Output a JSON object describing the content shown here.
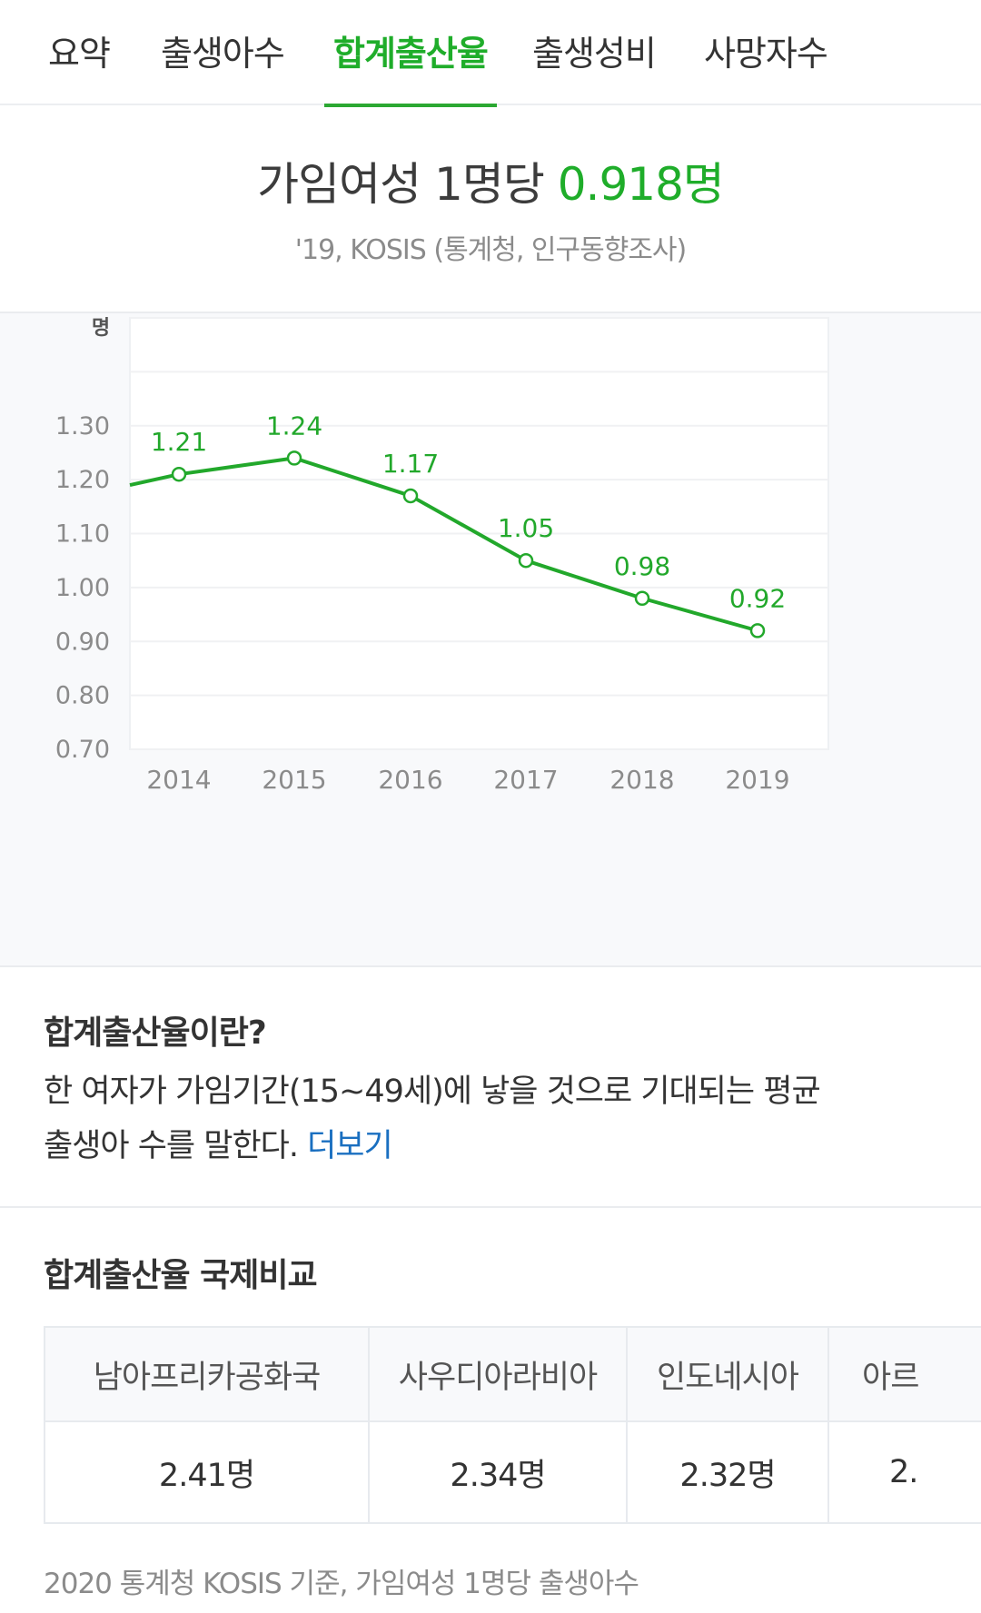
{
  "tabs": [
    {
      "label": "요약",
      "active": false
    },
    {
      "label": "출생아수",
      "active": false
    },
    {
      "label": "합계출산율",
      "active": true
    },
    {
      "label": "출생성비",
      "active": false
    },
    {
      "label": "사망자수",
      "active": false
    }
  ],
  "headline": {
    "prefix": "가임여성 1명당 ",
    "value": "0.918명",
    "source": "'19, KOSIS (통계청, 인구동향조사)"
  },
  "colors": {
    "accent": "#1fad2a",
    "line": "#22a82b",
    "link": "#1a6fc0",
    "chart_bg": "#f8f9fb"
  },
  "chart_data": {
    "type": "line",
    "title": "",
    "ylabel": "명",
    "xlabel": "",
    "categories": [
      "2014",
      "2015",
      "2016",
      "2017",
      "2018",
      "2019"
    ],
    "values": [
      1.21,
      1.24,
      1.17,
      1.05,
      0.98,
      0.92
    ],
    "data_labels": [
      "1.21",
      "1.24",
      "1.17",
      "1.05",
      "0.98",
      "0.92"
    ],
    "left_edge_value": 1.19,
    "y_ticks": [
      "1.30",
      "1.20",
      "1.10",
      "1.00",
      "0.90",
      "0.80",
      "0.70"
    ],
    "ylim": [
      0.7,
      1.5
    ],
    "grid": true,
    "legend": "none"
  },
  "definition": {
    "title": "합계출산율이란?",
    "body_line1": "한 여자가 가임기간(15~49세)에 낳을 것으로 기대되는 평균",
    "body_line2": "출생아 수를 말한다. ",
    "more_link": "더보기"
  },
  "comparison": {
    "title": "합계출산율 국제비교",
    "columns": [
      {
        "country": "남아프리카공화국",
        "value": "2.41명"
      },
      {
        "country": "사우디아라비아",
        "value": "2.34명"
      },
      {
        "country": "인도네시아",
        "value": "2.32명"
      },
      {
        "country": "아르",
        "value": "2."
      }
    ],
    "note": "2020 통계청 KOSIS 기준, 가임여성 1명당 출생아수"
  }
}
